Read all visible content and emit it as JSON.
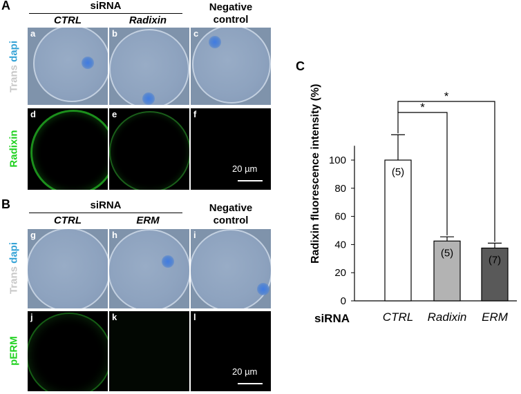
{
  "panel_letters": {
    "a": "A",
    "b": "B",
    "c": "C"
  },
  "panelA": {
    "sirna_header": "siRNA",
    "col1": "CTRL",
    "col2": "Radixin",
    "negative_line1": "Negative",
    "negative_line2": "control",
    "row1_label_a": "Trans",
    "row1_label_b": "dapi",
    "row2_label": "Radixin",
    "sublabels": [
      "a",
      "b",
      "c",
      "d",
      "e",
      "f"
    ],
    "scale": "20 µm"
  },
  "panelB": {
    "sirna_header": "siRNA",
    "col1": "CTRL",
    "col2": "ERM",
    "negative_line1": "Negative",
    "negative_line2": "control",
    "row1_label_a": "Trans",
    "row1_label_b": "dapi",
    "row2_label": "pERM",
    "sublabels": [
      "g",
      "h",
      "i",
      "j",
      "k",
      "l"
    ],
    "scale": "20 µm"
  },
  "colors": {
    "trans_gray": "#c8c8c8",
    "dapi_blue": "#35a3d6",
    "radixin_green": "#1fd11f",
    "bar_ctrl": "#ffffff",
    "bar_radixin": "#b3b3b3",
    "bar_erm": "#595959"
  },
  "chart_data": {
    "type": "bar",
    "title": "",
    "ylabel": "Radixin fluorescence intensity (%)",
    "xlabel": "siRNA",
    "categories": [
      "CTRL",
      "Radixin",
      "ERM"
    ],
    "values": [
      100,
      42.5,
      37.5
    ],
    "errors": [
      18,
      3,
      3.5
    ],
    "n_labels": [
      "(5)",
      "(5)",
      "(7)"
    ],
    "ylim": [
      0,
      120
    ],
    "yticks": [
      0,
      20,
      40,
      60,
      80,
      100
    ],
    "significance": [
      "*",
      "*"
    ]
  }
}
